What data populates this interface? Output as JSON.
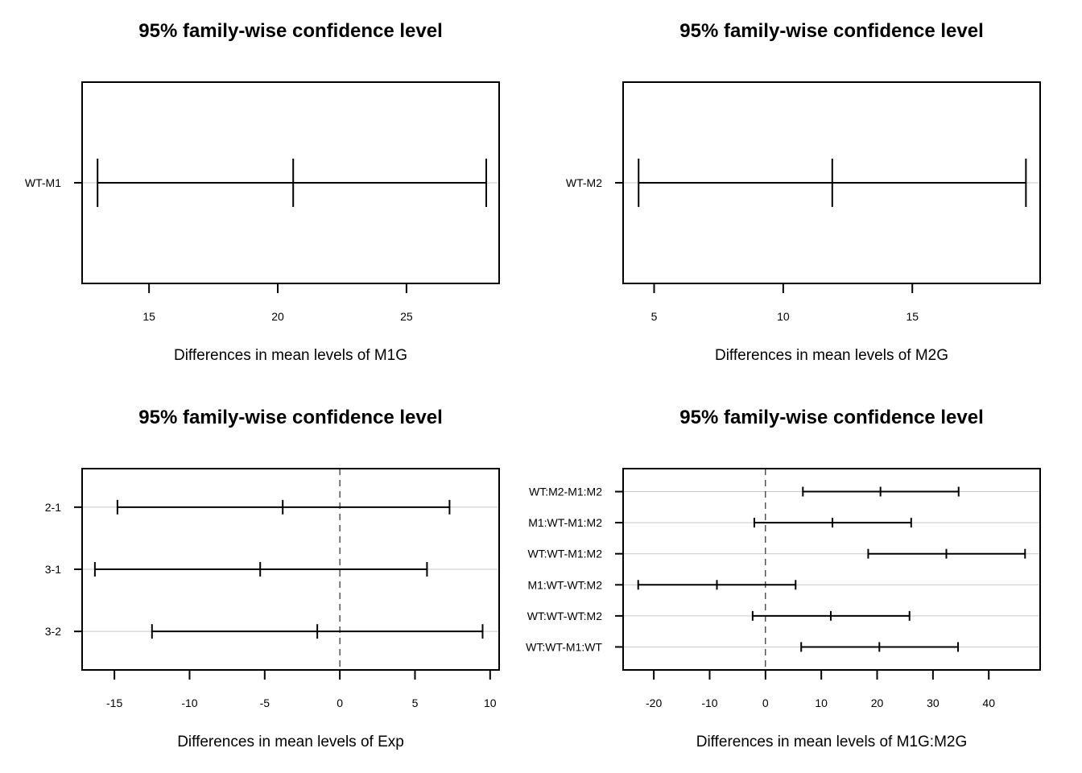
{
  "chart_data": [
    {
      "type": "interval",
      "title": "95% family-wise confidence level",
      "xlabel": "Differences in mean levels of M1G",
      "xlim": [
        12.4,
        28.6
      ],
      "xticks": [
        15,
        20,
        25
      ],
      "tick_labels": [
        "15",
        "20",
        "25"
      ],
      "zero_line": false,
      "grid": true,
      "comparisons": [
        {
          "label": "WT-M1",
          "lwr": 13.0,
          "diff": 20.6,
          "upr": 28.1
        }
      ]
    },
    {
      "type": "interval",
      "title": "95% family-wise confidence level",
      "xlabel": "Differences in mean levels of M2G",
      "xlim": [
        3.8,
        19.95
      ],
      "xticks": [
        5,
        10,
        15
      ],
      "tick_labels": [
        "5",
        "10",
        "15"
      ],
      "zero_line": false,
      "grid": true,
      "comparisons": [
        {
          "label": "WT-M2",
          "lwr": 4.4,
          "diff": 11.9,
          "upr": 19.4
        }
      ]
    },
    {
      "type": "interval",
      "title": "95% family-wise confidence level",
      "xlabel": "Differences in mean levels of Exp",
      "xlim": [
        -17.15,
        10.6
      ],
      "xticks": [
        -15,
        -10,
        -5,
        0,
        5,
        10
      ],
      "tick_labels": [
        "-15",
        "-10",
        "-5",
        "0",
        "5",
        "10"
      ],
      "zero_line": true,
      "grid": true,
      "comparisons": [
        {
          "label": "2-1",
          "lwr": -14.8,
          "diff": -3.8,
          "upr": 7.3
        },
        {
          "label": "3-1",
          "lwr": -16.3,
          "diff": -5.3,
          "upr": 5.8
        },
        {
          "label": "3-2",
          "lwr": -12.5,
          "diff": -1.5,
          "upr": 9.5
        }
      ]
    },
    {
      "type": "interval",
      "title": "95% family-wise confidence level",
      "xlabel": "Differences in mean levels of M1G:M2G",
      "xlim": [
        -25.5,
        49.2
      ],
      "xticks": [
        -20,
        -10,
        0,
        10,
        20,
        30,
        40
      ],
      "tick_labels": [
        "-20",
        "-10",
        "0",
        "10",
        "20",
        "30",
        "40"
      ],
      "zero_line": true,
      "grid": true,
      "comparisons": [
        {
          "label": "WT:M2-M1:M2",
          "lwr": 6.7,
          "diff": 20.6,
          "upr": 34.6
        },
        {
          "label": "M1:WT-M1:M2",
          "lwr": -2.0,
          "diff": 12.0,
          "upr": 26.1
        },
        {
          "label": "WT:WT-M1:M2",
          "lwr": 18.4,
          "diff": 32.4,
          "upr": 46.5
        },
        {
          "label": "M1:WT-WT:M2",
          "lwr": -22.8,
          "diff": -8.7,
          "upr": 5.4
        },
        {
          "label": "WT:WT-WT:M2",
          "lwr": -2.3,
          "diff": 11.7,
          "upr": 25.8
        },
        {
          "label": "WT:WT-M1:WT",
          "lwr": 6.4,
          "diff": 20.4,
          "upr": 34.5
        }
      ]
    }
  ]
}
